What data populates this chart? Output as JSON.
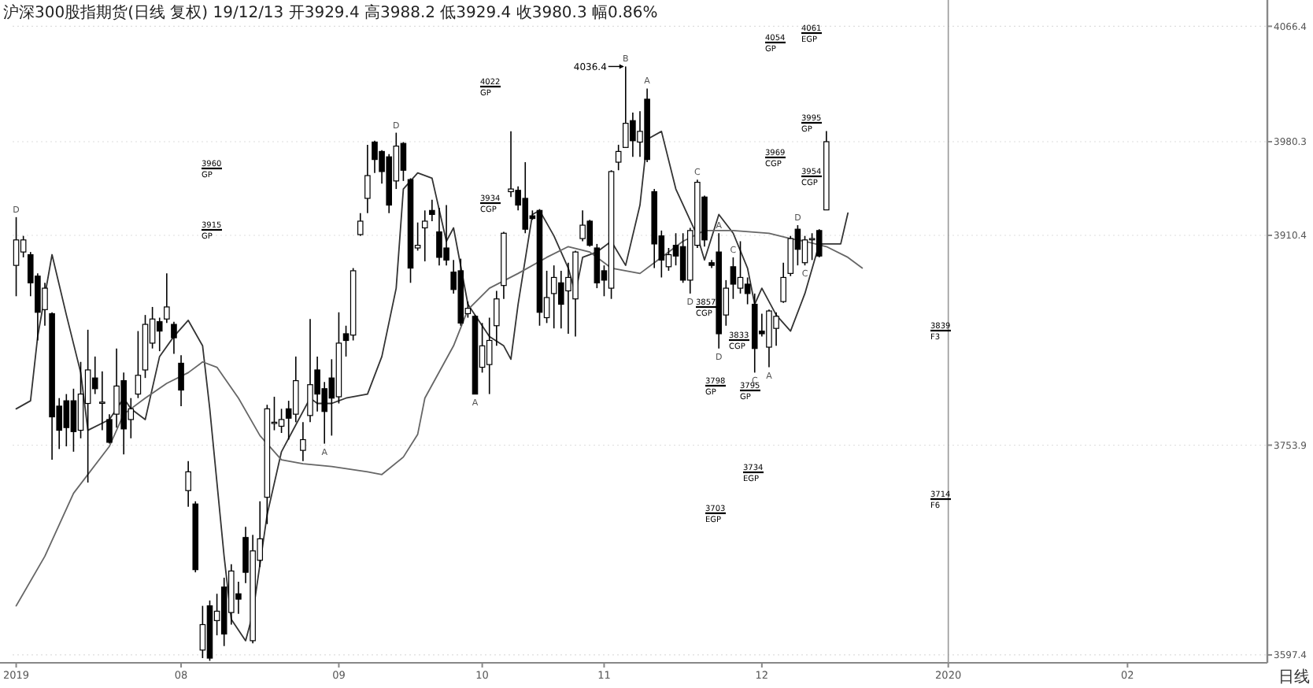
{
  "chart_data": {
    "type": "candlestick",
    "title": "沪深300股指期货(日线 复权) 19/12/13 开3929.4 高3988.2 低3929.4 收3980.3 幅0.86%",
    "xlabel": "日线",
    "color": "#000000",
    "categories": [
      "2019",
      null,
      null,
      null,
      null,
      null,
      null,
      null,
      null,
      null,
      null,
      null,
      null,
      null,
      null,
      null,
      null,
      null,
      null,
      null,
      null,
      null,
      null,
      "08",
      null,
      null,
      null,
      null,
      null,
      null,
      null,
      null,
      null,
      null,
      null,
      null,
      null,
      null,
      null,
      null,
      null,
      null,
      null,
      null,
      null,
      "09",
      null,
      null,
      null,
      null,
      null,
      null,
      null,
      null,
      null,
      null,
      null,
      null,
      null,
      null,
      null,
      null,
      null,
      null,
      null,
      "10",
      null,
      null,
      null,
      null,
      null,
      null,
      null,
      null,
      null,
      null,
      null,
      null,
      null,
      null,
      null,
      null,
      "11",
      null,
      null,
      null,
      null,
      null,
      null,
      null,
      null,
      null,
      null,
      null,
      null,
      null,
      null,
      null,
      null,
      null,
      null,
      null,
      null,
      null,
      "12",
      null,
      null,
      null,
      null,
      null,
      null,
      null,
      null,
      null,
      null,
      null,
      null,
      null,
      null,
      null,
      null,
      null,
      null,
      null,
      null,
      null,
      null,
      null,
      null,
      null,
      "2020",
      null,
      null,
      null,
      null,
      null,
      null,
      null,
      null,
      null,
      null,
      null,
      null,
      null,
      null,
      null,
      null,
      null,
      null,
      null,
      null,
      null,
      null,
      null,
      null,
      "02",
      null,
      null,
      null,
      null,
      null,
      null,
      null,
      null,
      null,
      null,
      null,
      null,
      null,
      null,
      null,
      null,
      null,
      null,
      null
    ],
    "ohlc": [
      [
        3888,
        3924,
        3865,
        3907
      ],
      [
        3898,
        3910,
        3894,
        3907
      ],
      [
        3896,
        3898,
        3865,
        3875
      ],
      [
        3880,
        3882,
        3832,
        3853
      ],
      [
        3855,
        3875,
        3843,
        3871
      ],
      [
        3852,
        3853,
        3743,
        3775
      ],
      [
        3783,
        3789,
        3751,
        3765
      ],
      [
        3787,
        3792,
        3753,
        3767
      ],
      [
        3787,
        3796,
        3749,
        3764
      ],
      [
        3765,
        3816,
        3759,
        3792
      ],
      [
        3785,
        3840,
        3726,
        3810
      ],
      [
        3804,
        3820,
        3792,
        3796
      ],
      [
        3786,
        3809,
        3765,
        3786
      ],
      [
        3773,
        3777,
        3755,
        3756
      ],
      [
        3777,
        3826,
        3767,
        3798
      ],
      [
        3802,
        3808,
        3747,
        3766
      ],
      [
        3773,
        3789,
        3759,
        3781
      ],
      [
        3792,
        3839,
        3789,
        3806
      ],
      [
        3810,
        3851,
        3804,
        3844
      ],
      [
        3830,
        3857,
        3826,
        3848
      ],
      [
        3846,
        3849,
        3824,
        3839
      ],
      [
        3848,
        3882,
        3845,
        3857
      ],
      [
        3844,
        3846,
        3822,
        3834
      ],
      [
        3815,
        3821,
        3783,
        3795
      ],
      [
        3720,
        3742,
        3708,
        3734
      ],
      [
        3710,
        3712,
        3659,
        3661
      ],
      [
        3601,
        3634,
        3595,
        3620
      ],
      [
        3634,
        3638,
        3593,
        3595
      ],
      [
        3623,
        3643,
        3612,
        3630
      ],
      [
        3648,
        3655,
        3604,
        3613
      ],
      [
        3629,
        3665,
        3620,
        3660
      ],
      [
        3643,
        3652,
        3628,
        3639
      ],
      [
        3685,
        3693,
        3651,
        3659
      ],
      [
        3608,
        3687,
        3606,
        3675
      ],
      [
        3668,
        3712,
        3663,
        3684
      ],
      [
        3715,
        3784,
        3695,
        3781
      ],
      [
        3771,
        3790,
        3765,
        3771
      ],
      [
        3768,
        3781,
        3763,
        3773
      ],
      [
        3781,
        3787,
        3758,
        3774
      ],
      [
        3777,
        3820,
        3771,
        3802
      ],
      [
        3750,
        3771,
        3742,
        3758
      ],
      [
        3776,
        3848,
        3771,
        3799
      ],
      [
        3810,
        3820,
        3779,
        3792
      ],
      [
        3796,
        3801,
        3755,
        3779
      ],
      [
        3804,
        3818,
        3761,
        3789
      ],
      [
        3790,
        3853,
        3785,
        3830
      ],
      [
        3837,
        3843,
        3820,
        3832
      ],
      [
        3836,
        3886,
        3832,
        3884
      ],
      [
        3911,
        3927,
        3910,
        3921
      ],
      [
        3938,
        3978,
        3927,
        3955
      ],
      [
        3980,
        3981,
        3957,
        3967
      ],
      [
        3973,
        3974,
        3949,
        3958
      ],
      [
        3969,
        3971,
        3927,
        3933
      ],
      [
        3951,
        3987,
        3945,
        3977
      ],
      [
        3979,
        3980,
        3951,
        3959
      ],
      [
        3952,
        3953,
        3875,
        3886
      ],
      [
        3901,
        3920,
        3899,
        3903
      ],
      [
        3916,
        3929,
        3891,
        3921
      ],
      [
        3929,
        3937,
        3921,
        3926
      ],
      [
        3913,
        3931,
        3888,
        3894
      ],
      [
        3901,
        3933,
        3888,
        3892
      ],
      [
        3883,
        3892,
        3867,
        3870
      ],
      [
        3884,
        3893,
        3843,
        3845
      ],
      [
        3852,
        3861,
        3849,
        3856
      ],
      [
        3850,
        3851,
        3792,
        3792
      ],
      [
        3812,
        3845,
        3808,
        3828
      ],
      [
        3814,
        3849,
        3792,
        3832
      ],
      [
        3843,
        3869,
        3828,
        3863
      ],
      [
        3873,
        3913,
        3863,
        3912
      ],
      [
        3943,
        3988,
        3939,
        3945
      ],
      [
        3944,
        3947,
        3929,
        3933
      ],
      [
        3938,
        3965,
        3912,
        3915
      ],
      [
        3925,
        3929,
        3922,
        3923
      ],
      [
        3929,
        3930,
        3843,
        3853
      ],
      [
        3849,
        3884,
        3845,
        3864
      ],
      [
        3867,
        3888,
        3841,
        3879
      ],
      [
        3875,
        3884,
        3841,
        3859
      ],
      [
        3869,
        3890,
        3837,
        3879
      ],
      [
        3863,
        3899,
        3835,
        3898
      ],
      [
        3908,
        3929,
        3906,
        3918
      ],
      [
        3921,
        3922,
        3902,
        3903
      ],
      [
        3901,
        3904,
        3871,
        3875
      ],
      [
        3884,
        3888,
        3865,
        3877
      ],
      [
        3871,
        3959,
        3863,
        3958
      ],
      [
        3965,
        3978,
        3959,
        3973
      ],
      [
        3976,
        4036.4,
        3976,
        3994
      ],
      [
        3996,
        4002,
        3969,
        3981
      ],
      [
        3980,
        4003,
        3969,
        3988
      ],
      [
        4012,
        4020,
        3965,
        3967
      ],
      [
        3943,
        3945,
        3886,
        3904
      ],
      [
        3910,
        3914,
        3879,
        3892
      ],
      [
        3887,
        3901,
        3884,
        3896
      ],
      [
        3903,
        3912,
        3888,
        3895
      ],
      [
        3902,
        3912,
        3875,
        3877
      ],
      [
        3877,
        3916,
        3867,
        3914
      ],
      [
        3903,
        3952,
        3901,
        3950
      ],
      [
        3939,
        3940,
        3902,
        3907
      ],
      [
        3890,
        3892,
        3886,
        3888
      ],
      [
        3898,
        3912,
        3826,
        3837
      ],
      [
        3851,
        3877,
        3843,
        3871
      ],
      [
        3887,
        3894,
        3863,
        3874
      ],
      [
        3871,
        3906,
        3867,
        3879
      ],
      [
        3874,
        3879,
        3859,
        3867
      ],
      [
        3859,
        3867,
        3808,
        3826
      ],
      [
        3839,
        3852,
        3835,
        3837
      ],
      [
        3827,
        3855,
        3812,
        3854
      ],
      [
        3841,
        3853,
        3828,
        3850
      ],
      [
        3861,
        3890,
        3860,
        3879
      ],
      [
        3882,
        3910,
        3880,
        3908
      ],
      [
        3915,
        3918,
        3888,
        3900
      ],
      [
        3890,
        3910,
        3888,
        3907
      ],
      [
        3908,
        3912,
        3892,
        3908
      ],
      [
        3914,
        3915,
        3894,
        3895
      ],
      [
        3929.4,
        3988.2,
        3929.4,
        3980.3
      ],
      null,
      null,
      null,
      null,
      null,
      null,
      null,
      null,
      null,
      null,
      null,
      null,
      null,
      null,
      null,
      null,
      null,
      null,
      null,
      null,
      null,
      null,
      null,
      null,
      null,
      null,
      null,
      null,
      null,
      null,
      null,
      null,
      null,
      null,
      null,
      null,
      null,
      null,
      null,
      null,
      null,
      null,
      null,
      null,
      null,
      null,
      null,
      null,
      null,
      null,
      null,
      null,
      null,
      null,
      null,
      null,
      null,
      null,
      null,
      null,
      null
    ],
    "series": [
      {
        "type": "line",
        "color": "#333333",
        "values": [
          3781,
          null,
          3787,
          3835,
          null,
          3896,
          null,
          3851,
          null,
          3808,
          3765,
          null,
          null,
          3773,
          null,
          3789,
          3781,
          null,
          3773,
          null,
          3820,
          null,
          3835,
          null,
          3847,
          null,
          3828,
          3781,
          null,
          3671,
          3624,
          null,
          3608,
          3628,
          null,
          3702,
          null,
          3749,
          null,
          3769,
          null,
          3789,
          3785,
          null,
          3785,
          null,
          3789,
          null,
          null,
          3792,
          null,
          3820,
          null,
          3871,
          3945,
          null,
          3957,
          null,
          3953,
          null,
          3906,
          3916,
          null,
          3859,
          3851,
          null,
          3835,
          null,
          3828,
          3818,
          3859,
          null,
          3926,
          3929,
          null,
          3910,
          null,
          3886,
          3867,
          3894,
          null,
          3898,
          null,
          3906,
          null,
          3888,
          null,
          3933,
          3982,
          null,
          3988,
          null,
          3945,
          null,
          null,
          3910,
          3892,
          null,
          3926,
          null,
          3912,
          null,
          3886,
          3859,
          3871,
          null,
          3851,
          null,
          3839,
          null,
          3867,
          null,
          3904,
          null,
          null,
          3904,
          3927,
          null,
          null,
          null,
          null,
          null,
          null,
          null,
          null,
          null,
          null,
          null,
          null,
          null,
          null,
          null,
          null,
          null,
          null,
          null,
          null,
          null,
          null,
          null,
          null,
          null,
          null,
          null,
          null,
          null,
          null,
          null,
          null,
          null,
          null,
          null,
          null,
          null,
          null,
          null,
          null,
          null,
          null,
          null,
          null,
          null,
          null,
          null,
          null,
          null,
          null,
          null,
          null,
          null,
          null,
          null,
          null,
          null,
          null
        ]
      },
      {
        "type": "line",
        "color": "#666666",
        "values": [
          3634,
          null,
          null,
          null,
          3671,
          null,
          null,
          null,
          3718,
          null,
          null,
          null,
          null,
          3753,
          null,
          3777,
          null,
          null,
          3789,
          null,
          null,
          3800,
          null,
          null,
          3808,
          null,
          3816,
          null,
          3812,
          null,
          null,
          3789,
          null,
          null,
          3761,
          null,
          null,
          3743,
          null,
          null,
          3740,
          null,
          null,
          null,
          3738,
          null,
          null,
          null,
          null,
          3734,
          null,
          3732,
          null,
          null,
          3745,
          null,
          3762,
          3789,
          null,
          null,
          null,
          3828,
          null,
          3855,
          null,
          null,
          3871,
          null,
          null,
          null,
          3882,
          null,
          null,
          null,
          3894,
          null,
          null,
          3902,
          null,
          null,
          3898,
          null,
          null,
          3886,
          null,
          null,
          null,
          3882,
          null,
          3890,
          null,
          null,
          null,
          3906,
          null,
          null,
          3914,
          null,
          null,
          null,
          3914,
          null,
          null,
          null,
          null,
          3912,
          null,
          null,
          3908,
          null,
          3906,
          null,
          null,
          3902,
          null,
          null,
          3894,
          null,
          3886,
          null,
          null,
          null,
          null,
          null,
          null,
          null,
          null,
          null,
          null,
          null,
          null,
          null,
          null,
          null,
          null,
          null,
          null,
          null,
          null,
          null,
          null,
          null,
          null,
          null,
          null,
          null,
          null,
          null,
          null,
          null,
          null,
          null,
          null,
          null,
          null,
          null,
          null,
          null,
          null,
          null,
          null,
          null,
          null,
          null,
          null,
          null,
          null,
          null,
          null,
          null,
          null,
          null,
          null,
          null,
          null
        ]
      }
    ],
    "ref_lines": [
      {
        "axis": "x",
        "value": "2020",
        "color": "#999999"
      }
    ],
    "ylim": [
      3591.5,
      4086.0
    ],
    "yticks": [
      3597.4,
      3753.9,
      3910.4,
      3980.3,
      4066.4
    ],
    "grid": "y",
    "annotations": [
      "3960\nGP",
      "3915\nGP",
      "4022\nGP",
      "3934\nCGP",
      "4054\nGP",
      "3969\nCGP",
      "4061\nEGP",
      "3995\nGP",
      "3954\nCGP",
      "3857\nCGP",
      "3798\nGP",
      "3703\nEGP",
      "3833\nCGP",
      "3795\nGP",
      "3734\nEGP",
      "3839\nF3",
      "3714\nF6",
      "4036.4",
      "D",
      "A",
      "D",
      "A",
      "B",
      "A",
      "D",
      "C",
      "A",
      "D",
      "C",
      "C",
      "A",
      "D",
      "C"
    ]
  }
}
